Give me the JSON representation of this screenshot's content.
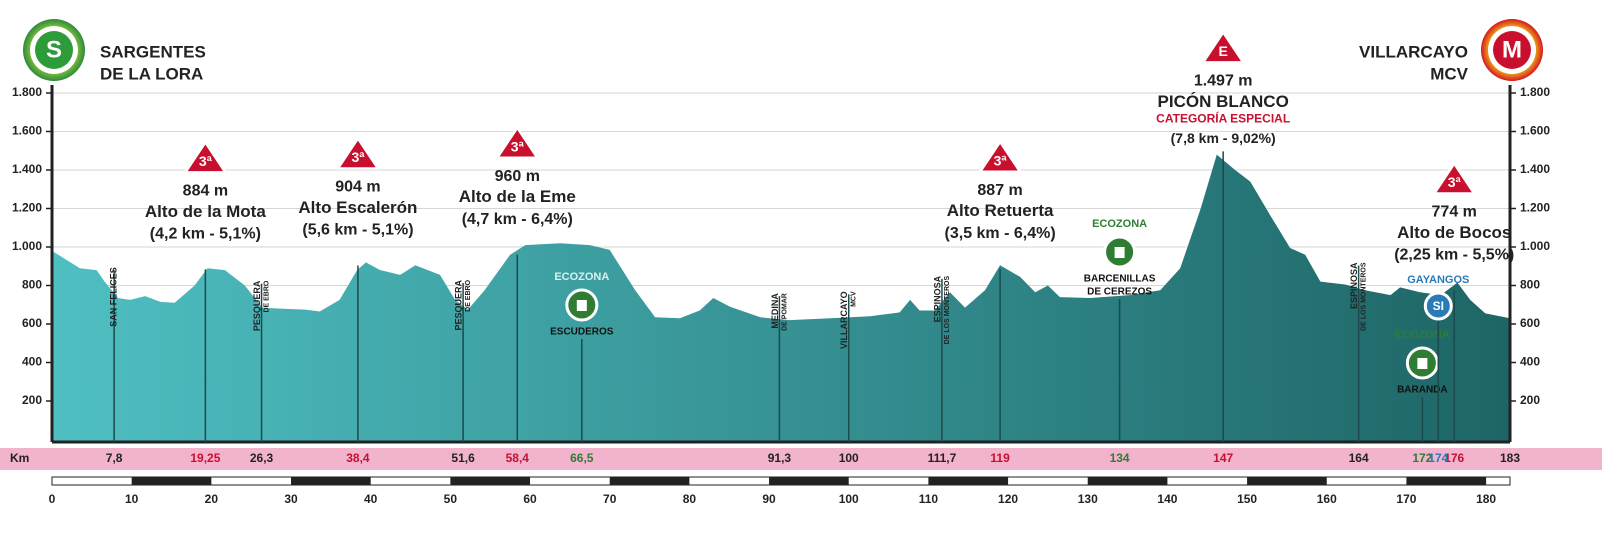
{
  "chart_data": {
    "type": "area",
    "x": [
      0,
      3.5,
      5.6,
      6.6,
      8.3,
      9.8,
      11.7,
      13.6,
      15.4,
      17.9,
      19.5,
      21.7,
      24.2,
      26.4,
      28.6,
      31.8,
      33.6,
      36.1,
      38.3,
      39.4,
      41.2,
      43.7,
      45.6,
      48.7,
      50.6,
      52.2,
      54.3,
      57.5,
      59.4,
      63.8,
      67.5,
      70,
      73.2,
      75.7,
      78.8,
      81.3,
      83,
      85.1,
      88.9,
      92.6,
      97.7,
      102.7,
      106.4,
      107.7,
      108.9,
      110.8,
      112.7,
      114.6,
      117.1,
      119,
      121.5,
      123.4,
      125,
      126.5,
      130.3,
      135.3,
      139.1,
      141.6,
      144.1,
      146.2,
      148.5,
      150.4,
      152.9,
      155.4,
      157.3,
      159.2,
      162.3,
      164.8,
      168,
      169.2,
      171.7,
      174.3,
      176.4,
      178,
      179.9,
      183
    ],
    "values": [
      980,
      890,
      880,
      820,
      735,
      725,
      745,
      715,
      710,
      800,
      890,
      880,
      800,
      685,
      680,
      675,
      665,
      725,
      880,
      920,
      880,
      855,
      905,
      855,
      725,
      675,
      775,
      960,
      1010,
      1020,
      1010,
      985,
      775,
      635,
      630,
      670,
      735,
      690,
      635,
      620,
      630,
      640,
      660,
      725,
      670,
      670,
      765,
      685,
      775,
      905,
      845,
      765,
      800,
      740,
      735,
      750,
      775,
      890,
      1190,
      1480,
      1400,
      1340,
      1165,
      995,
      960,
      820,
      805,
      775,
      750,
      790,
      765,
      750,
      815,
      725,
      655,
      630
    ],
    "color_start": "#4fbfc2",
    "color_end": "#1e6566",
    "xlim": [
      0,
      183
    ],
    "xticks": [
      0,
      10,
      20,
      30,
      40,
      50,
      60,
      70,
      80,
      90,
      100,
      110,
      120,
      130,
      140,
      150,
      160,
      170,
      180
    ],
    "ylim": [
      0,
      1800
    ],
    "yticks": [
      200,
      400,
      600,
      800,
      {
        "value": 1000,
        "label": "1.000"
      },
      {
        "value": 1200,
        "label": "1.200"
      },
      {
        "value": 1400,
        "label": "1.400"
      },
      {
        "value": 1600,
        "label": "1.600"
      },
      {
        "value": 1800,
        "label": "1.800"
      }
    ],
    "grid": true,
    "km_title": "Km",
    "start": {
      "badge": "S",
      "lines": [
        "SARGENTES",
        "DE LA LORA"
      ]
    },
    "finish": {
      "badge": "M",
      "lines": [
        "VILLARCAYO",
        "MCV"
      ],
      "km": 183
    },
    "town_color": "#222222",
    "climb_color": "#c8102e",
    "ecozona_color": "#2e7d32",
    "sprint_color": "#2a7ab8",
    "towns": [
      {
        "km": 7.8,
        "km_label": "7,8",
        "name": "SAN FELICES"
      },
      {
        "km": 26.3,
        "km_label": "26,3",
        "name": "PESQUERA",
        "sub": "DE EBRO"
      },
      {
        "km": 51.6,
        "km_label": "51,6",
        "name": "PESQUERA",
        "sub": "DE EBRO"
      },
      {
        "km": 91.3,
        "km_label": "91,3",
        "name": "MEDINA",
        "sub": "DE POMAR"
      },
      {
        "km": 100,
        "name": "VILLARCAYO",
        "sub": "MCV"
      },
      {
        "km": 111.7,
        "km_label": "111,7",
        "name": "ESPINOSA",
        "sub": "DE LOS MONTEROS"
      },
      {
        "km": 164,
        "name": "ESPINOSA",
        "sub": "DE LOS MONTEROS"
      }
    ],
    "climbs": [
      {
        "km": 19.25,
        "km_label": "19,25",
        "category": "3ª",
        "altitude": 884,
        "altitude_label": "884 m",
        "name": "Alto de la Mota",
        "detail": "(4,2 km - 5,1%)"
      },
      {
        "km": 38.4,
        "km_label": "38,4",
        "category": "3ª",
        "altitude": 904,
        "altitude_label": "904 m",
        "name": "Alto Escalerón",
        "detail": "(5,6 km - 5,1%)"
      },
      {
        "km": 58.4,
        "km_label": "58,4",
        "category": "3ª",
        "altitude": 960,
        "altitude_label": "960 m",
        "name": "Alto de la Eme",
        "detail": "(4,7 km - 6,4%)"
      },
      {
        "km": 119,
        "category": "3ª",
        "altitude": 887,
        "altitude_label": "887 m",
        "name": "Alto Retuerta",
        "detail": "(3,5 km - 6,4%)"
      },
      {
        "km": 147,
        "category": "E",
        "altitude": 1497,
        "altitude_label": "1.497 m",
        "name": "PICÓN BLANCO",
        "special": "CATEGORÍA ESPECIAL",
        "detail": "(7,8 km - 9,02%)"
      },
      {
        "km": 176,
        "category": "3ª",
        "altitude": 774,
        "altitude_label": "774 m",
        "name": "Alto de Bocos",
        "detail": "(2,25 km - 5,5%)"
      }
    ],
    "ecozonas": [
      {
        "km": 66.5,
        "km_label": "66,5",
        "label": "ECOZONA",
        "name": [
          "ESCUDEROS"
        ]
      },
      {
        "km": 134,
        "label": "ECOZONA",
        "name": [
          "BARCENILLAS",
          "DE CEREZOS"
        ]
      },
      {
        "km": 172,
        "label": "ECOZONA",
        "name": [
          "BARANDA"
        ]
      }
    ],
    "sprints": [
      {
        "km": 174,
        "badge": "SI",
        "name": "GAYANGOS"
      }
    ]
  }
}
